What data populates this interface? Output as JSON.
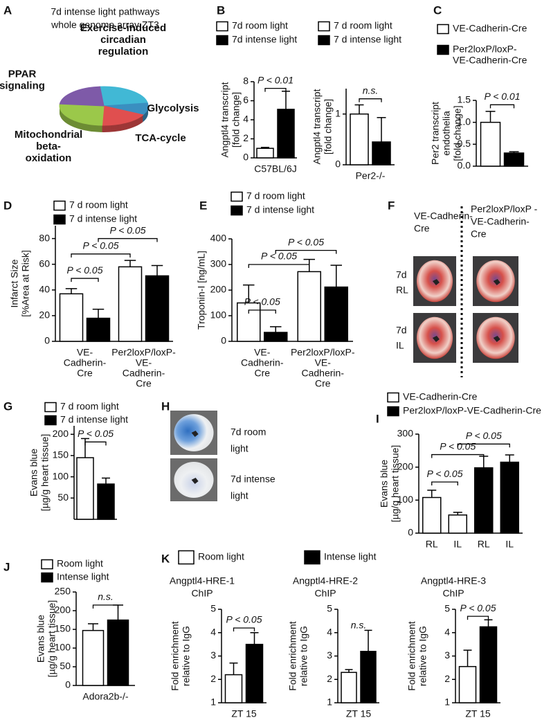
{
  "chart_data": [
    {
      "type": "pie",
      "panel": "A",
      "title": [
        "7d intense light pathways",
        "whole genome array ZT3"
      ],
      "categories": [
        [
          "Exercise-induced",
          "circadian",
          "regulation"
        ],
        [
          "Glycolysis"
        ],
        [
          "TCA-cycle"
        ],
        [
          "Mitochondrial",
          "beta-",
          "oxidation"
        ],
        [
          "PPAR",
          "signaling"
        ]
      ],
      "values": [
        24,
        10,
        18,
        26,
        22
      ],
      "colors": [
        "#41b8d5",
        "#3a8fc0",
        "#e04f4f",
        "#9bc84a",
        "#7e5aa8"
      ]
    },
    {
      "type": "bar",
      "panel": "B",
      "ylabel": [
        "Angptl4 transcript",
        "[fold change]"
      ],
      "ylim": [
        0,
        8
      ],
      "yticks": [
        0,
        2,
        4,
        6,
        8
      ],
      "categories": [
        "C57BL/6J"
      ],
      "series": [
        {
          "name": "7d room light",
          "color": "#ffffff",
          "values": [
            1.0
          ],
          "errors": [
            0.1
          ]
        },
        {
          "name": "7d intense light",
          "color": "#000000",
          "values": [
            5.1
          ],
          "errors": [
            1.9
          ]
        }
      ],
      "annotations": [
        "P < 0.01"
      ]
    },
    {
      "type": "bar",
      "ylabel": [
        "Angptl4 transcript",
        "[fold change]"
      ],
      "ylim": [
        0,
        1.5
      ],
      "yticks": [
        0,
        1
      ],
      "categories": [
        "Per2-/-"
      ],
      "series": [
        {
          "name": "7 d room light",
          "color": "#ffffff",
          "values": [
            1.0
          ],
          "errors": [
            0.18
          ]
        },
        {
          "name": "7 d intense light",
          "color": "#000000",
          "values": [
            0.45
          ],
          "errors": [
            0.48
          ]
        }
      ],
      "annotations": [
        "n.s."
      ]
    },
    {
      "type": "bar",
      "panel": "C",
      "ylabel": [
        "Per2 transcript",
        "endothelia",
        "[fold change]"
      ],
      "ylim": [
        0,
        1.5
      ],
      "yticks": [
        {
          "value": 0,
          "label": "0.0"
        },
        0.5,
        {
          "value": 1,
          "label": "1.0"
        },
        1.5
      ],
      "categories": [
        null
      ],
      "series": [
        {
          "name": [
            "VE-Cadherin-Cre"
          ],
          "color": "#ffffff",
          "values": [
            1.0
          ],
          "errors": [
            0.25
          ]
        },
        {
          "name": [
            "Per2loxP/loxP-",
            "VE-Cadherin-Cre"
          ],
          "color": "#000000",
          "values": [
            0.3
          ],
          "errors": [
            0.03
          ]
        }
      ],
      "annotations": [
        "P < 0.01"
      ]
    },
    {
      "type": "bar",
      "panel": "D",
      "ylabel": [
        "Infarct Size",
        "[%Area at Risk]"
      ],
      "ylim": [
        0,
        90
      ],
      "yticks": [
        0,
        20,
        40,
        60,
        80
      ],
      "categories": [
        [
          "VE-",
          "Cadherin-",
          "Cre"
        ],
        [
          "Per2loxP/loxP-",
          "VE-",
          "Cadherin-",
          "Cre"
        ]
      ],
      "series": [
        {
          "name": "7 d room light",
          "color": "#ffffff",
          "values": [
            37,
            58
          ],
          "errors": [
            4,
            5
          ]
        },
        {
          "name": "7 d intense light",
          "color": "#000000",
          "values": [
            18,
            51
          ],
          "errors": [
            7,
            8
          ]
        }
      ],
      "annotations": [
        "P < 0.05",
        "P < 0.05",
        "P < 0.05"
      ]
    },
    {
      "type": "bar",
      "panel": "E",
      "ylabel": [
        "Troponin-I [ng/mL]"
      ],
      "ylim": [
        0,
        400
      ],
      "yticks": [
        0,
        100,
        200,
        300,
        400
      ],
      "categories": [
        [
          "VE-",
          "Cadherin-",
          "Cre"
        ],
        [
          "Per2loxP/loxP-",
          "VE-",
          "Cadherin-",
          "Cre"
        ]
      ],
      "series": [
        {
          "name": "7 d room light",
          "color": "#ffffff",
          "values": [
            150,
            272
          ],
          "errors": [
            70,
            48
          ]
        },
        {
          "name": "7 d intense light",
          "color": "#000000",
          "values": [
            35,
            212
          ],
          "errors": [
            22,
            85
          ]
        }
      ],
      "annotations": [
        "P < 0.05",
        "P < 0.05",
        "P < 0.05"
      ]
    },
    {
      "type": "bar",
      "panel": "G",
      "ylabel": [
        "Evans blue",
        "[µg/g heart tissue]"
      ],
      "ylim": [
        0,
        220
      ],
      "yticks": [
        50,
        100,
        150,
        200
      ],
      "categories": [
        null
      ],
      "series": [
        {
          "name": "7 d room light",
          "color": "#ffffff",
          "values": [
            145
          ],
          "errors": [
            45
          ]
        },
        {
          "name": "7 d intense light",
          "color": "#000000",
          "values": [
            83
          ],
          "errors": [
            14
          ]
        }
      ],
      "annotations": [
        "P < 0.05"
      ]
    },
    {
      "type": "bar",
      "panel": "I",
      "ylabel": [
        "Evans blue",
        "[µg/g heart tissue]"
      ],
      "ylim": [
        0,
        300
      ],
      "yticks": [
        0,
        100,
        200,
        300
      ],
      "categories": [
        "RL",
        "IL",
        "RL",
        "IL"
      ],
      "series": [
        {
          "name": "VE-Cadherin-Cre",
          "color": "#ffffff",
          "values": [
            108,
            55,
            null,
            null
          ],
          "errors": [
            22,
            8,
            null,
            null
          ]
        },
        {
          "name": "Per2loxP/loxP-VE-Cadherin-Cre",
          "color": "#000000",
          "values": [
            null,
            null,
            198,
            215
          ],
          "errors": [
            null,
            null,
            35,
            22
          ]
        }
      ],
      "annotations": [
        "P < 0.05",
        "P < 0.05",
        "P < 0.05"
      ]
    },
    {
      "type": "bar",
      "panel": "J",
      "ylabel": [
        "Evans blue",
        "[µg/g heart tissue]"
      ],
      "ylim": [
        0,
        250
      ],
      "yticks": [
        0,
        50,
        100,
        150,
        200,
        250
      ],
      "categories": [
        "Adora2b-/-"
      ],
      "series": [
        {
          "name": "Room light",
          "color": "#ffffff",
          "values": [
            147
          ],
          "errors": [
            18
          ]
        },
        {
          "name": "Intense light",
          "color": "#000000",
          "values": [
            175
          ],
          "errors": [
            40
          ]
        }
      ],
      "annotations": [
        "n.s."
      ]
    },
    {
      "type": "bar",
      "panel": "K",
      "title": [
        "Angptl4-HRE-1",
        "ChIP"
      ],
      "ylabel": [
        "Fold enrichment",
        "relative to IgG"
      ],
      "ylim": [
        1,
        5
      ],
      "yticks": [
        1,
        2,
        3,
        4,
        5
      ],
      "categories": [
        "ZT 15"
      ],
      "series": [
        {
          "name": "Room light",
          "color": "#ffffff",
          "values": [
            2.2
          ],
          "errors": [
            0.5
          ]
        },
        {
          "name": "Intense light",
          "color": "#000000",
          "values": [
            3.5
          ],
          "errors": [
            0.5
          ]
        }
      ],
      "annotations": [
        "P < 0.05"
      ]
    },
    {
      "type": "bar",
      "title": [
        "Angptl4-HRE-2",
        "ChIP"
      ],
      "ylabel": [
        "Fold enrichment",
        "relative to IgG"
      ],
      "ylim": [
        1,
        5
      ],
      "yticks": [
        1,
        2,
        3,
        4,
        5
      ],
      "categories": [
        "ZT 15"
      ],
      "series": [
        {
          "color": "#ffffff",
          "values": [
            2.3
          ],
          "errors": [
            0.12
          ]
        },
        {
          "color": "#000000",
          "values": [
            3.2
          ],
          "errors": [
            0.9
          ]
        }
      ],
      "annotations": [
        "n.s."
      ]
    },
    {
      "type": "bar",
      "title": [
        "Angptl4-HRE-3",
        "ChIP"
      ],
      "ylabel": [
        "Fold enrichment",
        "relative to IgG"
      ],
      "ylim": [
        1,
        5
      ],
      "yticks": [
        1,
        2,
        3,
        4,
        5
      ],
      "categories": [
        "ZT 15"
      ],
      "series": [
        {
          "color": "#ffffff",
          "values": [
            2.55
          ],
          "errors": [
            0.7
          ]
        },
        {
          "color": "#000000",
          "values": [
            4.25
          ],
          "errors": [
            0.3
          ]
        }
      ],
      "annotations": [
        "P < 0.05"
      ]
    }
  ],
  "photos": [
    {
      "panel": "F",
      "column_labels": [
        [
          "VE-Cadherin-",
          "Cre"
        ],
        [
          "Per2loxP/loxP -",
          "VE-Cadherin-",
          "Cre"
        ]
      ],
      "row_labels": [
        [
          "7d",
          "RL"
        ],
        [
          "7d",
          "IL"
        ]
      ]
    },
    {
      "panel": "H",
      "labels": [
        [
          "7d room",
          "light"
        ],
        [
          "7d intense",
          "light"
        ]
      ]
    }
  ]
}
